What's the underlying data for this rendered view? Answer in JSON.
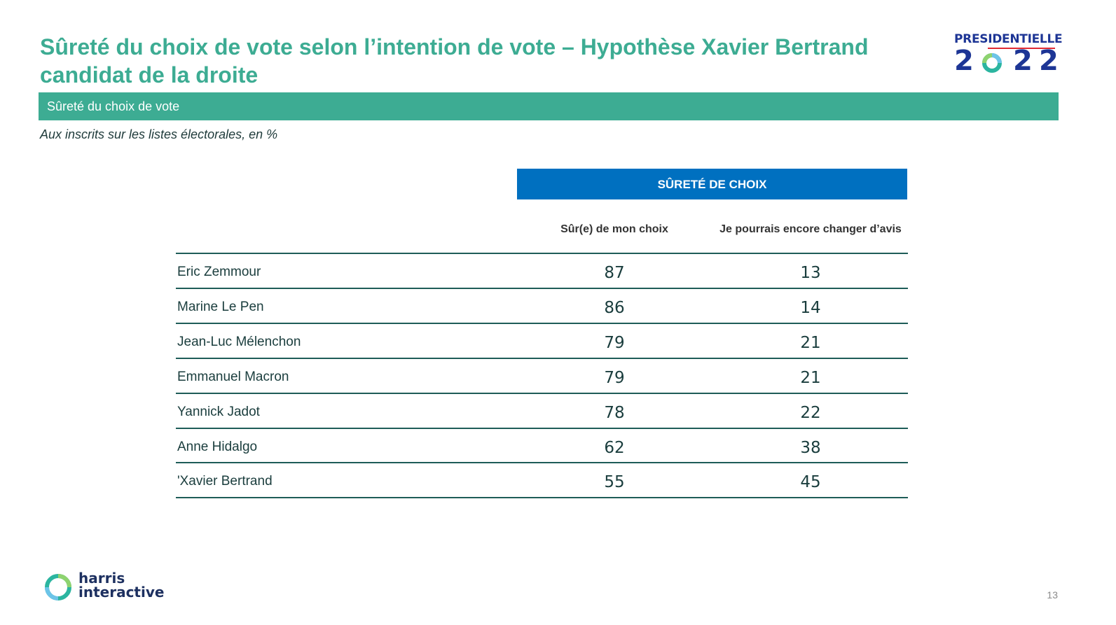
{
  "title": {
    "line1": "Sûreté du choix de vote selon l’intention de vote – Hypothèse Xavier Bertrand",
    "line2": "candidat de la droite"
  },
  "logo": {
    "top": "PRESIDENTIELLE",
    "digits": [
      "2",
      "2",
      "2"
    ]
  },
  "section_bar": "Sûreté du choix de vote",
  "subtitle": "Aux inscrits sur les listes électorales, en %",
  "table": {
    "group_header": "SÛRETÉ DE CHOIX",
    "columns": [
      "Sûr(e) de mon choix",
      "Je pourrais encore changer d’avis"
    ],
    "rows": [
      {
        "name": "Eric Zemmour",
        "sure": "87",
        "change": "13"
      },
      {
        "name": "Marine Le Pen",
        "sure": "86",
        "change": "14"
      },
      {
        "name": "Jean-Luc Mélenchon",
        "sure": "79",
        "change": "21"
      },
      {
        "name": "Emmanuel Macron",
        "sure": "79",
        "change": "21"
      },
      {
        "name": "Yannick Jadot",
        "sure": "78",
        "change": "22"
      },
      {
        "name": "Anne Hidalgo",
        "sure": "62",
        "change": "38"
      },
      {
        "name": "'Xavier Bertrand",
        "sure": "55",
        "change": "45"
      }
    ]
  },
  "footer": {
    "brand_line1": "harris",
    "brand_line2": "interactive",
    "page_number": "13"
  },
  "colors": {
    "accent_green": "#3dac93",
    "header_blue": "#0070c0",
    "logo_navy": "#1d3595"
  }
}
